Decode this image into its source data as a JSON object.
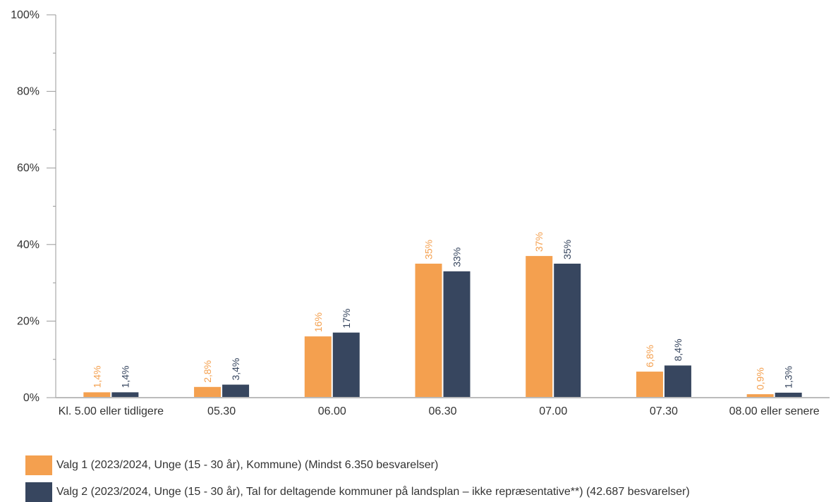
{
  "chart_data": {
    "type": "bar",
    "categories": [
      "Kl. 5.00 eller tidligere",
      "05.30",
      "06.00",
      "06.30",
      "07.00",
      "07.30",
      "08.00 eller senere"
    ],
    "series": [
      {
        "name": "Valg 1 (2023/2024, Unge (15 - 30 år), Kommune) (Mindst 6.350 besvarelser)",
        "color": "#F4A04F",
        "values": [
          1.4,
          2.8,
          16,
          35,
          37,
          6.8,
          0.9
        ],
        "labels": [
          "1,4%",
          "2,8%",
          "16%",
          "35%",
          "37%",
          "6,8%",
          "0,9%"
        ]
      },
      {
        "name": "Valg 2 (2023/2024, Unge (15 - 30 år), Tal for deltagende kommuner på landsplan – ikke repræsentative**) (42.687 besvarelser)",
        "color": "#37465F",
        "values": [
          1.4,
          3.4,
          17,
          33,
          35,
          8.4,
          1.3
        ],
        "labels": [
          "1,4%",
          "3,4%",
          "17%",
          "33%",
          "35%",
          "8,4%",
          "1,3%"
        ]
      }
    ],
    "y_ticks": [
      0,
      20,
      40,
      60,
      80,
      100
    ],
    "y_tick_labels": [
      "0%",
      "20%",
      "40%",
      "60%",
      "80%",
      "100%"
    ],
    "ylim": [
      0,
      100
    ],
    "grid": false,
    "legend_position": "bottom-left",
    "title": "",
    "xlabel": "",
    "ylabel": ""
  }
}
